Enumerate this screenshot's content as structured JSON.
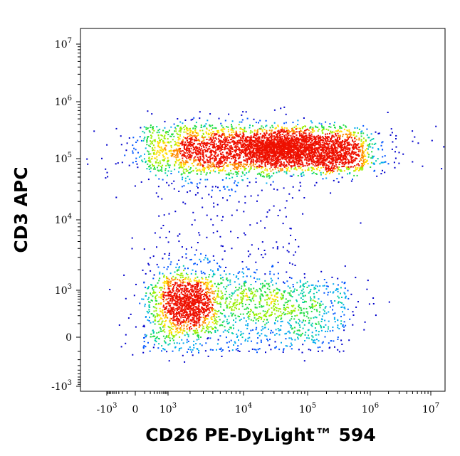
{
  "chart_data": {
    "type": "scatter",
    "xlabel": "CD26 PE-DyLight™ 594",
    "ylabel": "CD3 APC",
    "x_scale": "biexponential",
    "y_scale": "biexponential",
    "grid": false,
    "x_ticks": [
      {
        "v": -1000,
        "base": "-10",
        "exp": "3"
      },
      {
        "v": 0,
        "base": "0",
        "exp": ""
      },
      {
        "v": 1000,
        "base": "10",
        "exp": "3"
      },
      {
        "v": 10000,
        "base": "10",
        "exp": "4"
      },
      {
        "v": 100000,
        "base": "10",
        "exp": "5"
      },
      {
        "v": 1000000,
        "base": "10",
        "exp": "6"
      },
      {
        "v": 10000000,
        "base": "10",
        "exp": "7"
      }
    ],
    "y_ticks": [
      {
        "v": -1000,
        "base": "-10",
        "exp": "3"
      },
      {
        "v": 0,
        "base": "0",
        "exp": ""
      },
      {
        "v": 1000,
        "base": "10",
        "exp": "3"
      },
      {
        "v": 10000,
        "base": "10",
        "exp": "4"
      },
      {
        "v": 100000,
        "base": "10",
        "exp": "5"
      },
      {
        "v": 1000000,
        "base": "10",
        "exp": "6"
      },
      {
        "v": 10000000,
        "base": "10",
        "exp": "7"
      }
    ],
    "populations": [
      {
        "x_center": 35000,
        "y_center": 160000,
        "x_range": [
          500,
          1000000
        ],
        "y_range": [
          40000,
          450000
        ],
        "density": "high"
      },
      {
        "x_center": 1800,
        "y_center": 500,
        "x_range": [
          -300,
          300000
        ],
        "y_range": [
          -500,
          5000
        ],
        "density": "medium"
      }
    ]
  }
}
